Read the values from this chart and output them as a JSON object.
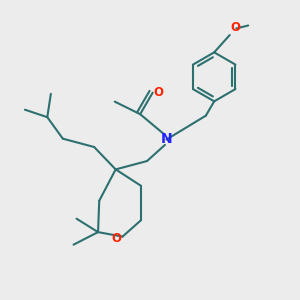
{
  "bg_color": "#ececec",
  "bond_color": "#2d7070",
  "N_color": "#2222ff",
  "O_color": "#ff2200",
  "font_size": 8.5,
  "line_width": 1.5,
  "figsize": [
    3.0,
    3.0
  ],
  "dpi": 100,
  "xlim": [
    0,
    10
  ],
  "ylim": [
    0,
    10
  ]
}
